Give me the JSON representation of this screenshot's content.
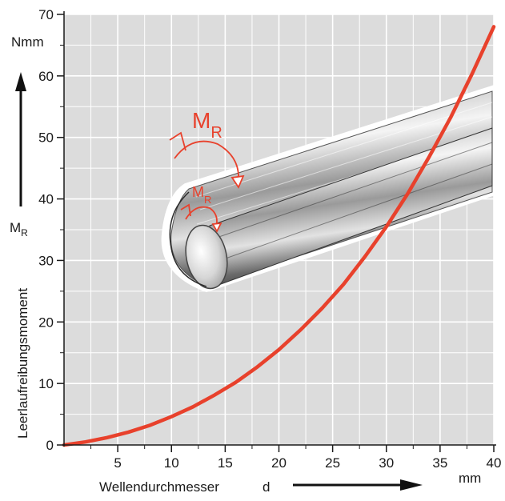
{
  "chart_data": {
    "type": "line",
    "title": "",
    "xlabel": "Wellendurchmesser",
    "xsymbol": "d",
    "xunit": "mm",
    "ylabel": "Leerlaufreibungsmoment",
    "ysymbol": "M",
    "ysymbol_sub": "R",
    "yunit": "Nmm",
    "xlim": [
      0,
      40
    ],
    "ylim": [
      0,
      70
    ],
    "xticks": [
      "5",
      "10",
      "15",
      "20",
      "25",
      "30",
      "35",
      "40"
    ],
    "yticks": [
      "0",
      "10",
      "20",
      "30",
      "40",
      "50",
      "60",
      "70"
    ],
    "grid": true,
    "series": [
      {
        "x": [
          0,
          2,
          4,
          6,
          8,
          10,
          12,
          14,
          16,
          18,
          20,
          22,
          24,
          26,
          28,
          30,
          32,
          34,
          36,
          38,
          40
        ],
        "y": [
          0,
          0.5,
          1.2,
          2.1,
          3.2,
          4.6,
          6.2,
          8.1,
          10.2,
          12.7,
          15.5,
          18.7,
          22.2,
          26.1,
          30.6,
          35.5,
          40.9,
          46.9,
          53.3,
          60.4,
          68
        ]
      }
    ],
    "colors": {
      "curve": "#e8412c",
      "plot_bg": "#dcdcdc",
      "grid": "#ffffff",
      "annotation": "#e8412c"
    },
    "annotations": {
      "large_moment": {
        "symbol": "M",
        "sub": "R"
      },
      "small_moment": {
        "symbol": "M",
        "sub": "R"
      }
    }
  }
}
